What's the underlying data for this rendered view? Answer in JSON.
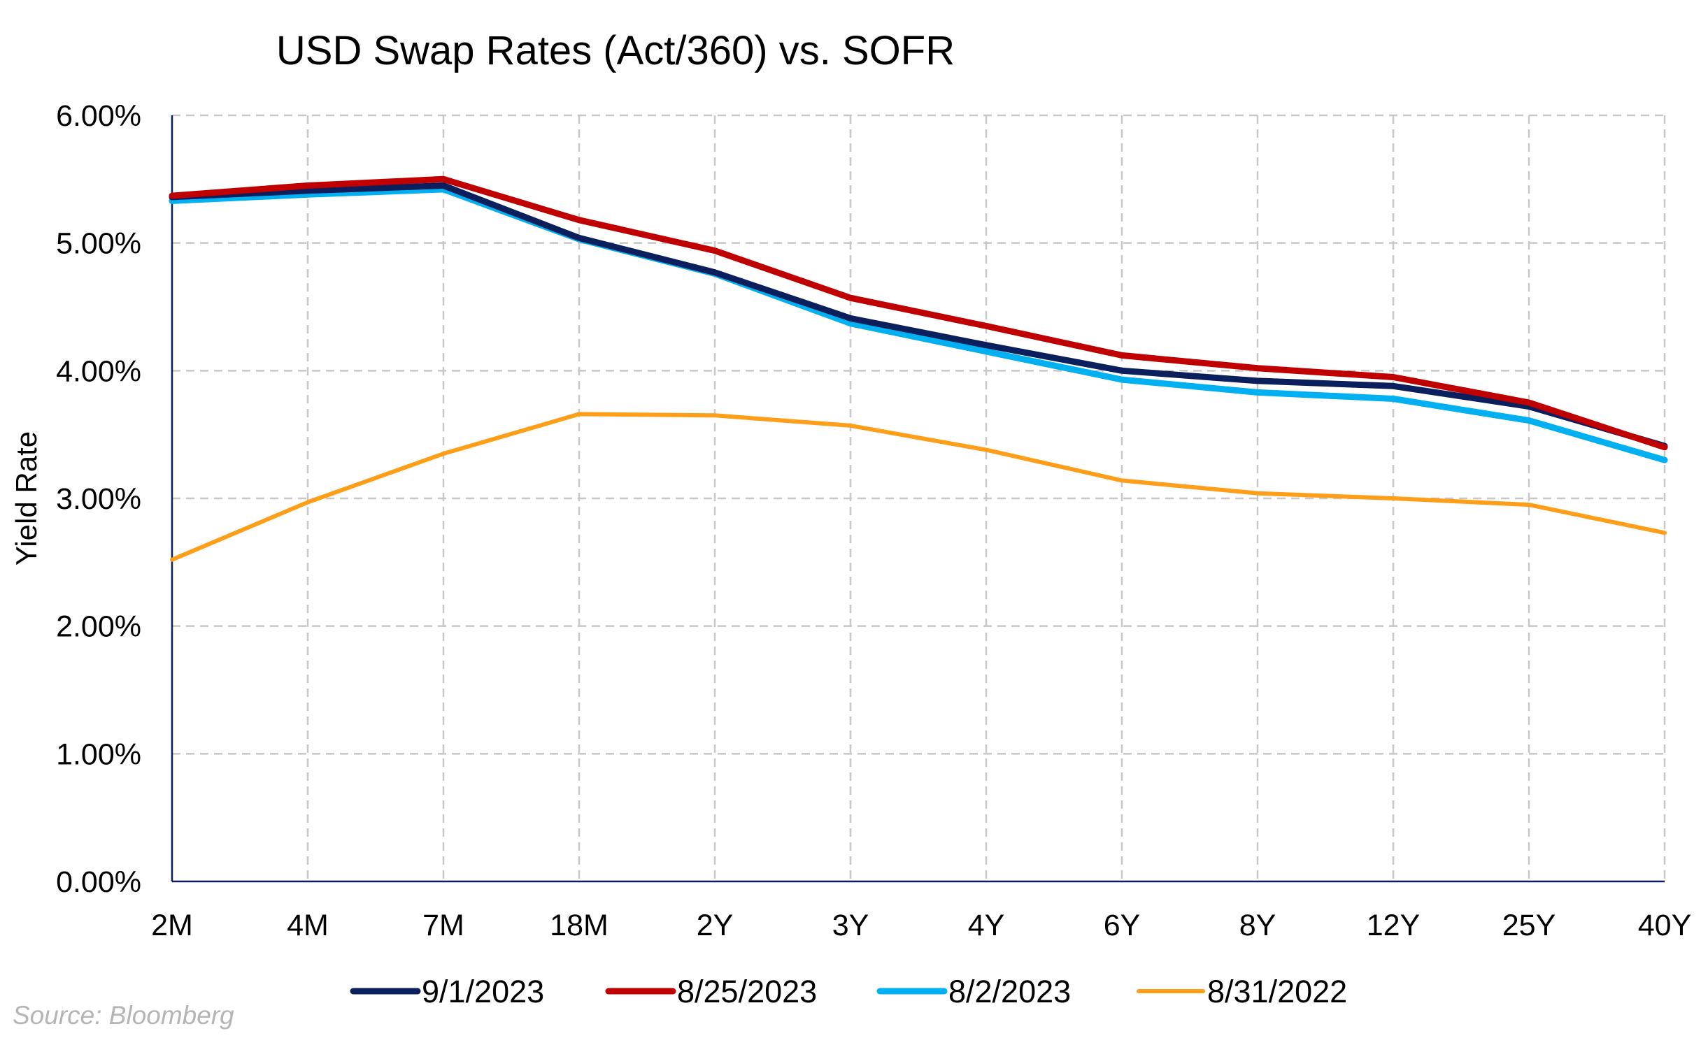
{
  "chart_data": {
    "type": "line",
    "title": "USD Swap Rates (Act/360) vs. SOFR",
    "ylabel": "Yield Rate",
    "xlabel": "",
    "categories": [
      "2M",
      "4M",
      "7M",
      "18M",
      "2Y",
      "3Y",
      "4Y",
      "6Y",
      "8Y",
      "12Y",
      "25Y",
      "40Y"
    ],
    "ylim": [
      0,
      6
    ],
    "yticks": [
      "0.00%",
      "1.00%",
      "2.00%",
      "3.00%",
      "4.00%",
      "5.00%",
      "6.00%"
    ],
    "grid": true,
    "legend_position": "bottom",
    "series": [
      {
        "name": "9/1/2023",
        "color": "#0b1f5c",
        "values": [
          5.36,
          5.41,
          5.45,
          5.04,
          4.77,
          4.41,
          4.2,
          4.0,
          3.92,
          3.88,
          3.72,
          3.41
        ]
      },
      {
        "name": "8/25/2023",
        "color": "#c00000",
        "values": [
          5.37,
          5.45,
          5.5,
          5.18,
          4.94,
          4.57,
          4.35,
          4.12,
          4.02,
          3.95,
          3.75,
          3.4
        ]
      },
      {
        "name": "8/2/2023",
        "color": "#00b0f0",
        "values": [
          5.33,
          5.38,
          5.42,
          5.03,
          4.76,
          4.37,
          4.15,
          3.93,
          3.83,
          3.78,
          3.61,
          3.3
        ]
      },
      {
        "name": "8/31/2022",
        "color": "#ff9e18",
        "values": [
          2.52,
          2.97,
          3.35,
          3.66,
          3.65,
          3.57,
          3.38,
          3.14,
          3.04,
          3.0,
          2.95,
          2.73
        ]
      }
    ],
    "source": "Source: Bloomberg"
  }
}
